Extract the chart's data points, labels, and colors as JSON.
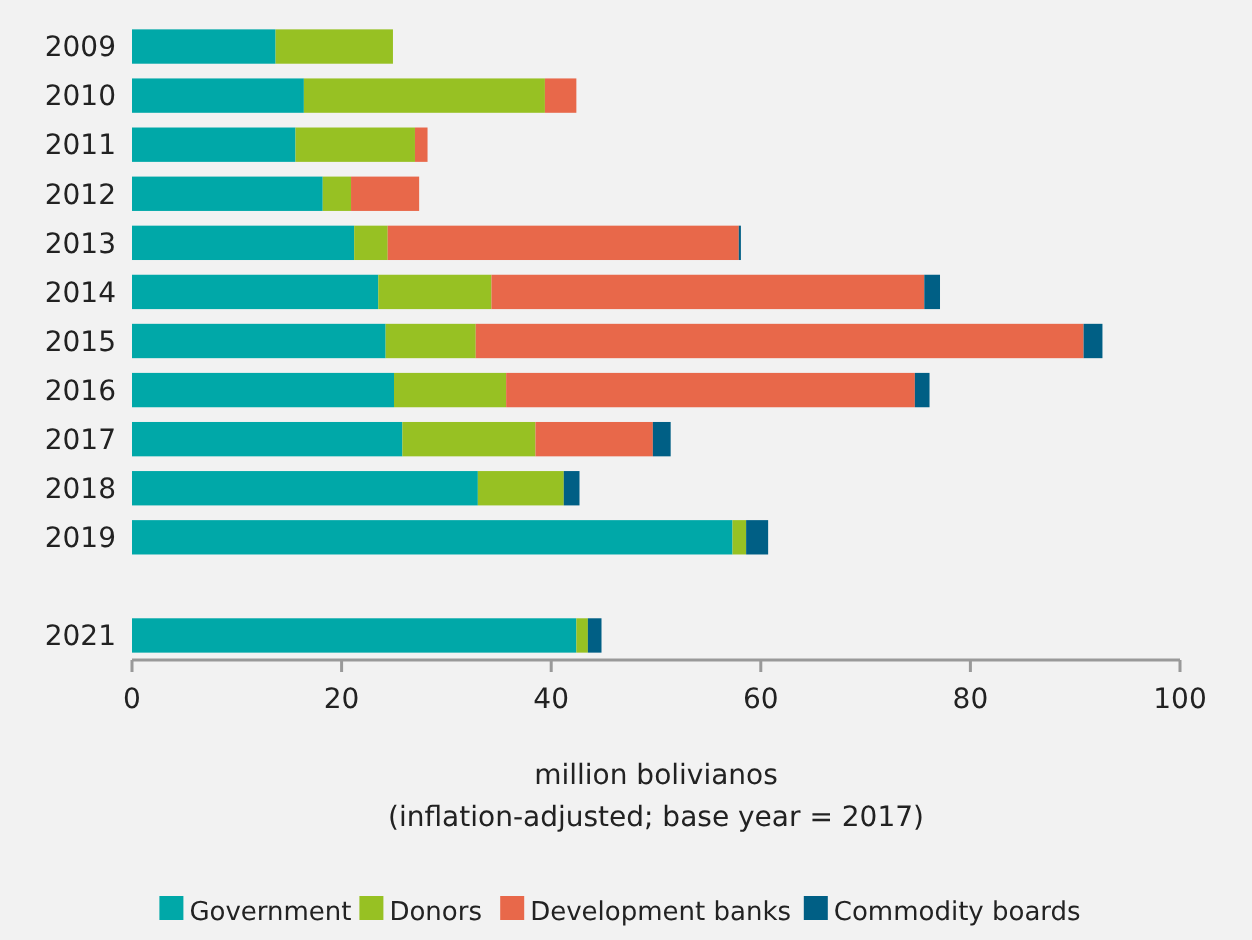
{
  "chart_data": {
    "type": "bar",
    "orientation": "horizontal",
    "stacked": true,
    "xlabel": "million bolivianos\n(inflation-adjusted; base year = 2017)",
    "categories": [
      "2009",
      "2010",
      "2011",
      "2012",
      "2013",
      "2014",
      "2015",
      "2016",
      "2017",
      "2018",
      "2019",
      null,
      "2021"
    ],
    "series": [
      {
        "name": "Government",
        "color": "#00a8a8",
        "values": [
          13.7,
          16.4,
          15.6,
          18.2,
          21.2,
          23.5,
          24.2,
          25.0,
          25.8,
          33.0,
          57.3,
          null,
          42.4
        ]
      },
      {
        "name": "Donors",
        "color": "#97c123",
        "values": [
          11.2,
          23.0,
          11.4,
          2.7,
          3.2,
          10.8,
          8.6,
          10.7,
          12.7,
          8.2,
          1.3,
          null,
          1.1
        ]
      },
      {
        "name": "Development banks",
        "color": "#e8684a",
        "values": [
          0,
          3.0,
          1.2,
          6.5,
          33.5,
          41.3,
          58.0,
          39.0,
          11.2,
          0,
          0,
          null,
          0
        ]
      },
      {
        "name": "Commodity boards",
        "color": "#005f85",
        "values": [
          0,
          0,
          0,
          0,
          0.2,
          1.5,
          1.8,
          1.4,
          1.7,
          1.5,
          2.1,
          null,
          1.3
        ]
      }
    ],
    "xlim": [
      0,
      100
    ],
    "xticks": [
      0,
      20,
      40,
      60,
      80,
      100
    ],
    "grid": false,
    "legend": "bottom"
  }
}
